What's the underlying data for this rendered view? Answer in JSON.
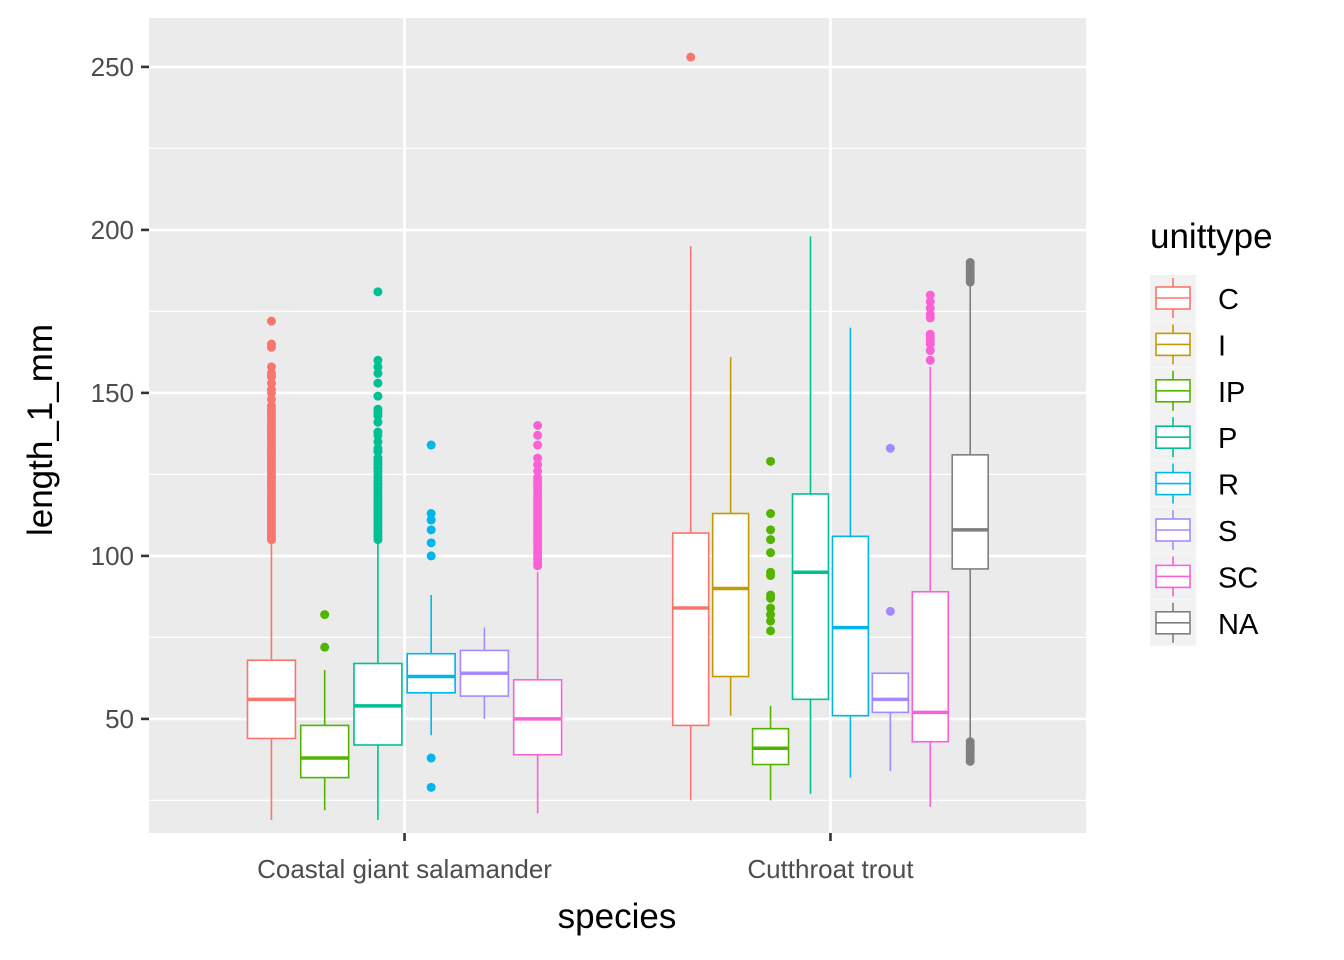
{
  "chart_data": {
    "type": "boxplot",
    "xlabel": "species",
    "ylabel": "length_1_mm",
    "categories": [
      "Coastal giant salamander",
      "Cutthroat trout"
    ],
    "y_ticks": [
      50,
      100,
      150,
      200,
      250
    ],
    "ylim": [
      15,
      265
    ],
    "grid": true,
    "legend": {
      "title": "unittype",
      "position": "right"
    },
    "series": [
      {
        "name": "C",
        "color": "#F8766D",
        "boxes": [
          {
            "category": "Coastal giant salamander",
            "whisker_low": 19,
            "q1": 44,
            "median": 56,
            "q3": 68,
            "whisker_high": 104,
            "outliers": [
              105,
              106,
              107,
              108,
              109,
              110,
              111,
              112,
              113,
              114,
              115,
              116,
              117,
              118,
              119,
              120,
              121,
              122,
              123,
              124,
              125,
              126,
              127,
              128,
              129,
              130,
              131,
              132,
              133,
              134,
              135,
              136,
              137,
              138,
              139,
              140,
              141,
              142,
              143,
              144,
              145,
              146,
              148,
              150,
              151,
              153,
              155,
              156,
              158,
              164,
              165,
              172
            ]
          },
          {
            "category": "Cutthroat trout",
            "whisker_low": 25,
            "q1": 48,
            "median": 84,
            "q3": 107,
            "whisker_high": 195,
            "outliers": [
              253
            ]
          }
        ]
      },
      {
        "name": "I",
        "color": "#C49A00",
        "boxes": [
          {
            "category": "Cutthroat trout",
            "whisker_low": 51,
            "q1": 63,
            "median": 90,
            "q3": 113,
            "whisker_high": 161,
            "outliers": []
          }
        ]
      },
      {
        "name": "IP",
        "color": "#53B400",
        "boxes": [
          {
            "category": "Coastal giant salamander",
            "whisker_low": 22,
            "q1": 32,
            "median": 38,
            "q3": 48,
            "whisker_high": 65,
            "outliers": [
              72,
              82
            ]
          },
          {
            "category": "Cutthroat trout",
            "whisker_low": 25,
            "q1": 36,
            "median": 41,
            "q3": 47,
            "whisker_high": 54,
            "outliers": [
              77,
              80,
              82,
              84,
              87,
              88,
              94,
              95,
              101,
              105,
              108,
              113,
              129
            ]
          }
        ]
      },
      {
        "name": "P",
        "color": "#00C094",
        "boxes": [
          {
            "category": "Coastal giant salamander",
            "whisker_low": 19,
            "q1": 42,
            "median": 54,
            "q3": 67,
            "whisker_high": 104,
            "outliers": [
              105,
              106,
              107,
              108,
              109,
              110,
              111,
              112,
              113,
              114,
              115,
              116,
              117,
              118,
              119,
              120,
              121,
              122,
              123,
              124,
              125,
              126,
              127,
              128,
              129,
              130,
              132,
              133,
              135,
              137,
              138,
              141,
              143,
              144,
              145,
              149,
              153,
              156,
              158,
              160,
              181
            ]
          },
          {
            "category": "Cutthroat trout",
            "whisker_low": 27,
            "q1": 56,
            "median": 95,
            "q3": 119,
            "whisker_high": 198,
            "outliers": []
          }
        ]
      },
      {
        "name": "R",
        "color": "#00B6EB",
        "boxes": [
          {
            "category": "Coastal giant salamander",
            "whisker_low": 45,
            "q1": 58,
            "median": 63,
            "q3": 70,
            "whisker_high": 88,
            "outliers": [
              29,
              38,
              100,
              104,
              108,
              111,
              113,
              134
            ]
          },
          {
            "category": "Cutthroat trout",
            "whisker_low": 32,
            "q1": 51,
            "median": 78,
            "q3": 106,
            "whisker_high": 170,
            "outliers": []
          }
        ]
      },
      {
        "name": "S",
        "color": "#A58AFF",
        "boxes": [
          {
            "category": "Coastal giant salamander",
            "whisker_low": 50,
            "q1": 57,
            "median": 64,
            "q3": 71,
            "whisker_high": 78,
            "outliers": []
          },
          {
            "category": "Cutthroat trout",
            "whisker_low": 34,
            "q1": 52,
            "median": 56,
            "q3": 64,
            "whisker_high": 64,
            "outliers": [
              83,
              133
            ]
          }
        ]
      },
      {
        "name": "SC",
        "color": "#FB61D7",
        "boxes": [
          {
            "category": "Coastal giant salamander",
            "whisker_low": 21,
            "q1": 39,
            "median": 50,
            "q3": 62,
            "whisker_high": 95,
            "outliers": [
              97,
              98,
              99,
              100,
              101,
              102,
              103,
              104,
              105,
              106,
              107,
              108,
              109,
              110,
              111,
              112,
              113,
              114,
              115,
              116,
              117,
              118,
              119,
              120,
              121,
              122,
              123,
              124,
              126,
              128,
              130,
              134,
              137,
              140
            ]
          },
          {
            "category": "Cutthroat trout",
            "whisker_low": 23,
            "q1": 43,
            "median": 52,
            "q3": 89,
            "whisker_high": 158,
            "outliers": [
              160,
              163,
              165,
              166,
              167,
              168,
              173,
              174,
              176,
              178,
              180
            ]
          }
        ]
      },
      {
        "name": "NA",
        "color": "#7F7F7F",
        "boxes": [
          {
            "category": "Cutthroat trout",
            "whisker_low": 44,
            "q1": 96,
            "median": 108,
            "q3": 131,
            "whisker_high": 183,
            "outliers": [
              37,
              38,
              39,
              40,
              41,
              42,
              43,
              184,
              185,
              186,
              187,
              188,
              189,
              190
            ]
          }
        ]
      }
    ]
  }
}
